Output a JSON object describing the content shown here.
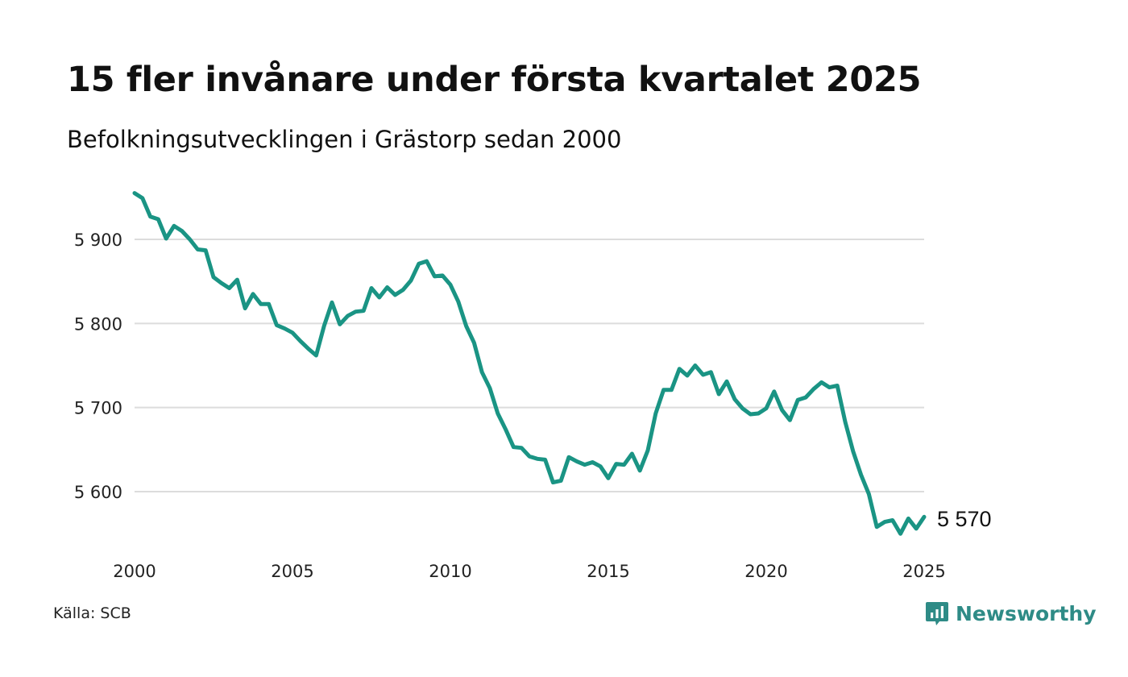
{
  "header": {
    "title": "15 fler invånare under första kvartalet 2025",
    "subtitle": "Befolkningsutvecklingen i Grästorp sedan 2000"
  },
  "footer": {
    "source": "Källa: SCB",
    "brand": "Newsworthy",
    "brand_icon": "newsworthy-logo-icon",
    "brand_color": "#2e8b86"
  },
  "chart_data": {
    "type": "line",
    "title": "15 fler invånare under första kvartalet 2025",
    "subtitle": "Befolkningsutvecklingen i Grästorp sedan 2000",
    "xlabel": "",
    "ylabel": "",
    "x_ticks": [
      "2000",
      "2005",
      "2010",
      "2015",
      "2020",
      "2025"
    ],
    "y_ticks": [
      "5 600",
      "5 700",
      "5 800",
      "5 900"
    ],
    "y_tick_values": [
      5600,
      5700,
      5800,
      5900
    ],
    "xlim": [
      2000,
      2025
    ],
    "ylim": [
      5545,
      5960
    ],
    "grid": "horizontal",
    "line_color": "#1a9484",
    "end_label": "5 570",
    "series": [
      {
        "x": [
          2000.0,
          2000.25,
          2000.5,
          2000.75,
          2001.0,
          2001.25,
          2001.5,
          2001.75,
          2002.0,
          2002.25,
          2002.5,
          2002.75,
          2003.0,
          2003.25,
          2003.5,
          2003.75,
          2004.0,
          2004.25,
          2004.5,
          2004.75,
          2005.0,
          2005.25,
          2005.5,
          2005.75,
          2006.0,
          2006.25,
          2006.5,
          2006.75,
          2007.0,
          2007.25,
          2007.5,
          2007.75,
          2008.0,
          2008.25,
          2008.5,
          2008.75,
          2009.0,
          2009.25,
          2009.5,
          2009.75,
          2010.0,
          2010.25,
          2010.5,
          2010.75,
          2011.0,
          2011.25,
          2011.5,
          2011.75,
          2012.0,
          2012.25,
          2012.5,
          2012.75,
          2013.0,
          2013.25,
          2013.5,
          2013.75,
          2014.0,
          2014.25,
          2014.5,
          2014.75,
          2015.0,
          2015.25,
          2015.5,
          2015.75,
          2016.0,
          2016.25,
          2016.5,
          2016.75,
          2017.0,
          2017.25,
          2017.5,
          2017.75,
          2018.0,
          2018.25,
          2018.5,
          2018.75,
          2019.0,
          2019.25,
          2019.5,
          2019.75,
          2020.0,
          2020.25,
          2020.5,
          2020.75,
          2021.0,
          2021.25,
          2021.5,
          2021.75,
          2022.0,
          2022.25,
          2022.5,
          2022.75,
          2023.0,
          2023.25,
          2023.5,
          2023.75,
          2024.0,
          2024.25,
          2024.5,
          2024.75,
          2025.0
        ],
        "values": [
          5955,
          5949,
          5927,
          5924,
          5901,
          5916,
          5910,
          5900,
          5888,
          5887,
          5855,
          5848,
          5842,
          5852,
          5818,
          5835,
          5823,
          5823,
          5798,
          5794,
          5789,
          5779,
          5770,
          5762,
          5797,
          5825,
          5799,
          5809,
          5814,
          5815,
          5842,
          5831,
          5843,
          5834,
          5840,
          5851,
          5871,
          5874,
          5856,
          5857,
          5846,
          5826,
          5797,
          5777,
          5742,
          5723,
          5693,
          5674,
          5653,
          5652,
          5642,
          5639,
          5638,
          5611,
          5613,
          5641,
          5636,
          5632,
          5635,
          5630,
          5616,
          5633,
          5632,
          5645,
          5625,
          5649,
          5693,
          5721,
          5721,
          5746,
          5738,
          5750,
          5739,
          5742,
          5716,
          5731,
          5710,
          5699,
          5692,
          5693,
          5699,
          5719,
          5697,
          5685,
          5709,
          5712,
          5722,
          5730,
          5724,
          5726,
          5683,
          5648,
          5620,
          5597,
          5558,
          5564,
          5566,
          5550,
          5568,
          5556,
          5570
        ]
      }
    ]
  }
}
